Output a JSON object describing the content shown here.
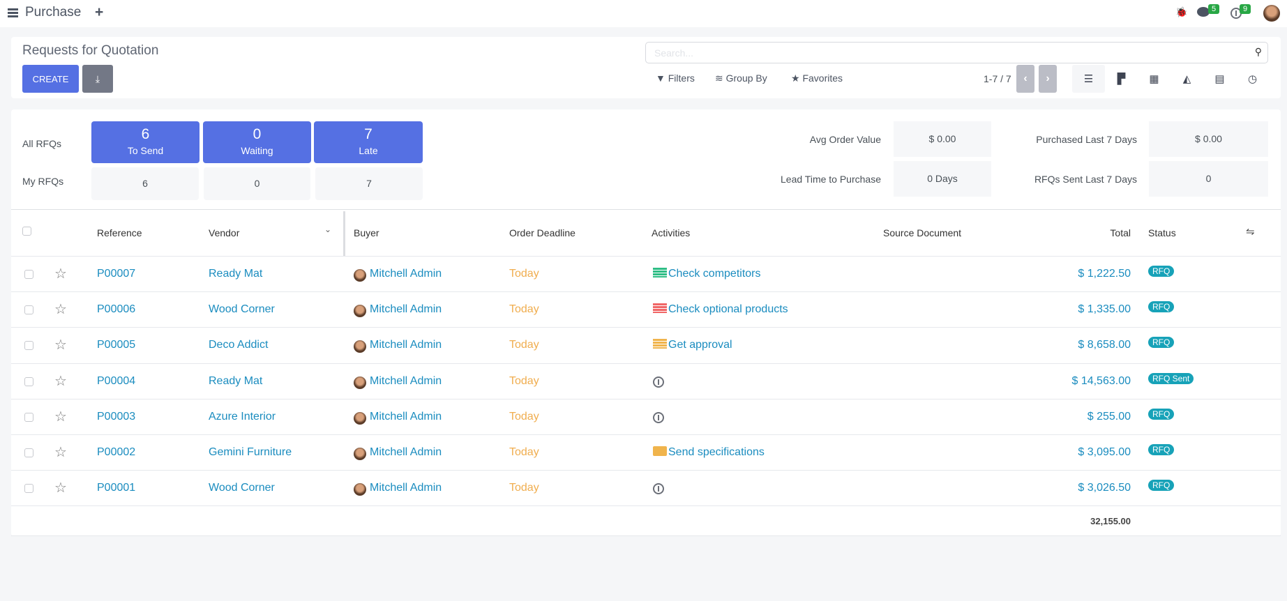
{
  "navbar": {
    "app_title": "Purchase",
    "chat_count": "5",
    "activity_count": "9"
  },
  "control_panel": {
    "title": "Requests for Quotation",
    "create_label": "CREATE",
    "search_placeholder": "Search...",
    "filters_label": "Filters",
    "group_by_label": "Group By",
    "favorites_label": "Favorites",
    "pager": "1-7 / 7",
    "views": [
      "list",
      "kanban",
      "pivot",
      "graph",
      "calendar",
      "activity"
    ],
    "active_view": "list"
  },
  "dashboard": {
    "all_label": "All RFQs",
    "my_label": "My RFQs",
    "tiles": [
      {
        "count": "6",
        "label": "To Send",
        "mine": "6"
      },
      {
        "count": "0",
        "label": "Waiting",
        "mine": "0"
      },
      {
        "count": "7",
        "label": "Late",
        "mine": "7"
      }
    ],
    "stats": [
      {
        "label": "Avg Order Value",
        "value": "$ 0.00"
      },
      {
        "label": "Lead Time to Purchase",
        "value": "0 Days"
      },
      {
        "label": "Purchased Last 7 Days",
        "value": "$ 0.00"
      },
      {
        "label": "RFQs Sent Last 7 Days",
        "value": "0"
      }
    ]
  },
  "table": {
    "headers": {
      "reference": "Reference",
      "vendor": "Vendor",
      "buyer": "Buyer",
      "deadline": "Order Deadline",
      "activities": "Activities",
      "source": "Source Document",
      "total": "Total",
      "status": "Status"
    },
    "rows": [
      {
        "reference": "P00007",
        "vendor": "Ready Mat",
        "buyer": "Mitchell Admin",
        "deadline": "Today",
        "activity": "Check competitors",
        "activity_icon": "todo-icon",
        "activity_color": "#2ebd85",
        "total": "$ 1,222.50",
        "status": "RFQ"
      },
      {
        "reference": "P00006",
        "vendor": "Wood Corner",
        "buyer": "Mitchell Admin",
        "deadline": "Today",
        "activity": "Check optional products",
        "activity_icon": "todo-icon",
        "activity_color": "#f06767",
        "total": "$ 1,335.00",
        "status": "RFQ"
      },
      {
        "reference": "P00005",
        "vendor": "Deco Addict",
        "buyer": "Mitchell Admin",
        "deadline": "Today",
        "activity": "Get approval",
        "activity_icon": "todo-icon",
        "activity_color": "#f0b44c",
        "total": "$ 8,658.00",
        "status": "RFQ"
      },
      {
        "reference": "P00004",
        "vendor": "Ready Mat",
        "buyer": "Mitchell Admin",
        "deadline": "Today",
        "activity": "",
        "activity_icon": "clock-icon",
        "total": "$ 14,563.00",
        "status": "RFQ Sent"
      },
      {
        "reference": "P00003",
        "vendor": "Azure Interior",
        "buyer": "Mitchell Admin",
        "deadline": "Today",
        "activity": "",
        "activity_icon": "clock-icon",
        "total": "$ 255.00",
        "status": "RFQ"
      },
      {
        "reference": "P00002",
        "vendor": "Gemini Furniture",
        "buyer": "Mitchell Admin",
        "deadline": "Today",
        "activity": "Send specifications",
        "activity_icon": "envelope-icon",
        "activity_color": "#f0b44c",
        "total": "$ 3,095.00",
        "status": "RFQ"
      },
      {
        "reference": "P00001",
        "vendor": "Wood Corner",
        "buyer": "Mitchell Admin",
        "deadline": "Today",
        "activity": "",
        "activity_icon": "clock-icon",
        "total": "$ 3,026.50",
        "status": "RFQ"
      }
    ],
    "grand_total": "32,155.00"
  },
  "colors": {
    "primary": "#5570e3",
    "link": "#1a8cbf",
    "deadline": "#f0ad4e",
    "status_badge": "#17a2b8"
  }
}
